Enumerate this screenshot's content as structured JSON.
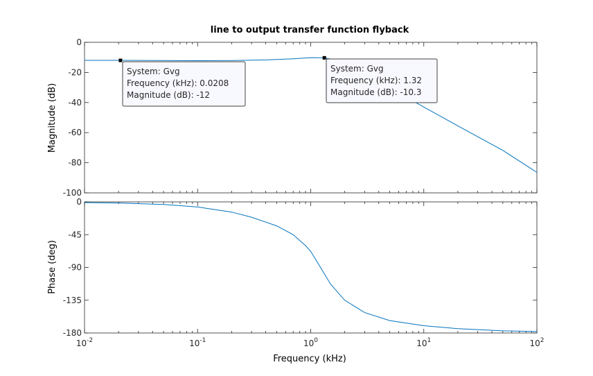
{
  "chart_data": {
    "type": "line",
    "title": "line to output transfer function flyback",
    "xlabel": "Frequency  (kHz)",
    "x_scale": "log",
    "xlim": [
      0.01,
      100
    ],
    "x_tick_labels": [
      {
        "base": "10",
        "exp": "-2"
      },
      {
        "base": "10",
        "exp": "-1"
      },
      {
        "base": "10",
        "exp": "0"
      },
      {
        "base": "10",
        "exp": "1"
      },
      {
        "base": "10",
        "exp": "2"
      }
    ],
    "magnitude": {
      "ylabel": "Magnitude (dB)",
      "ylim": [
        -100,
        0
      ],
      "yticks": [
        0,
        -20,
        -40,
        -60,
        -80,
        -100
      ],
      "series": [
        {
          "color": "#0072bd",
          "x": [
            0.01,
            0.0208,
            0.05,
            0.1,
            0.2,
            0.4,
            0.7,
            1.0,
            1.32,
            1.6,
            2.0,
            3.0,
            5.0,
            10,
            20,
            50,
            100
          ],
          "y": [
            -12,
            -12,
            -12.1,
            -12.2,
            -12.1,
            -11.7,
            -10.9,
            -10.2,
            -10.3,
            -11.5,
            -14.3,
            -21.1,
            -30.3,
            -43.0,
            -55.5,
            -71.8,
            -86.4
          ]
        }
      ]
    },
    "phase": {
      "ylabel": "Phase (deg)",
      "ylim": [
        -180,
        0
      ],
      "yticks": [
        0,
        -45,
        -90,
        -135,
        -180
      ],
      "series": [
        {
          "color": "#0072bd",
          "x": [
            0.01,
            0.02,
            0.05,
            0.1,
            0.2,
            0.3,
            0.5,
            0.7,
            0.9,
            1.0,
            1.2,
            1.5,
            2.0,
            3.0,
            5.0,
            10,
            20,
            50,
            100
          ],
          "y": [
            -1,
            -1.5,
            -3.5,
            -7,
            -14,
            -21,
            -33,
            -45,
            -60,
            -68,
            -88,
            -113,
            -135,
            -152,
            -163,
            -170,
            -174,
            -177,
            -178
          ]
        }
      ]
    },
    "datatips": [
      {
        "lines": [
          "System: Gvg",
          "Frequency (kHz): 0.0208",
          "Magnitude (dB): -12"
        ],
        "x": 0.0208,
        "y": -12
      },
      {
        "lines": [
          "System: Gvg",
          "Frequency (kHz): 1.32",
          "Magnitude (dB): -10.3"
        ],
        "x": 1.32,
        "y": -10.3
      }
    ]
  }
}
